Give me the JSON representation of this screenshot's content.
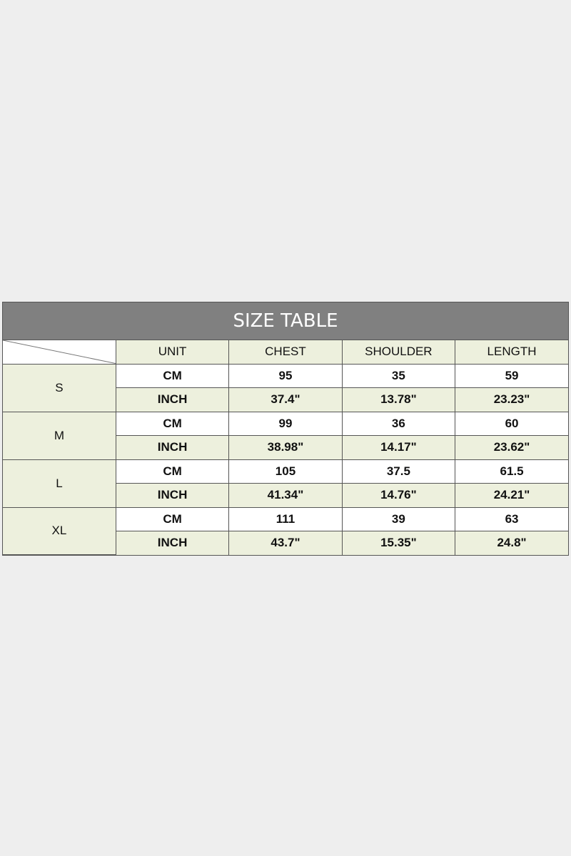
{
  "title": "SIZE TABLE",
  "headers": [
    "UNIT",
    "CHEST",
    "SHOULDER",
    "LENGTH"
  ],
  "sizes": [
    {
      "size": "S",
      "rows": [
        [
          "CM",
          "95",
          "35",
          "59"
        ],
        [
          "INCH",
          "37.4\"",
          "13.78\"",
          "23.23\""
        ]
      ]
    },
    {
      "size": "M",
      "rows": [
        [
          "CM",
          "99",
          "36",
          "60"
        ],
        [
          "INCH",
          "38.98\"",
          "14.17\"",
          "23.62\""
        ]
      ]
    },
    {
      "size": "L",
      "rows": [
        [
          "CM",
          "105",
          "37.5",
          "61.5"
        ],
        [
          "INCH",
          "41.34\"",
          "14.76\"",
          "24.21\""
        ]
      ]
    },
    {
      "size": "XL",
      "rows": [
        [
          "CM",
          "111",
          "39",
          "63"
        ],
        [
          "INCH",
          "43.7\"",
          "15.35\"",
          "24.8\""
        ]
      ]
    }
  ],
  "colors": {
    "title_bar": "#808080",
    "accent_green": "#edf0dd",
    "background": "#eeeeee"
  }
}
